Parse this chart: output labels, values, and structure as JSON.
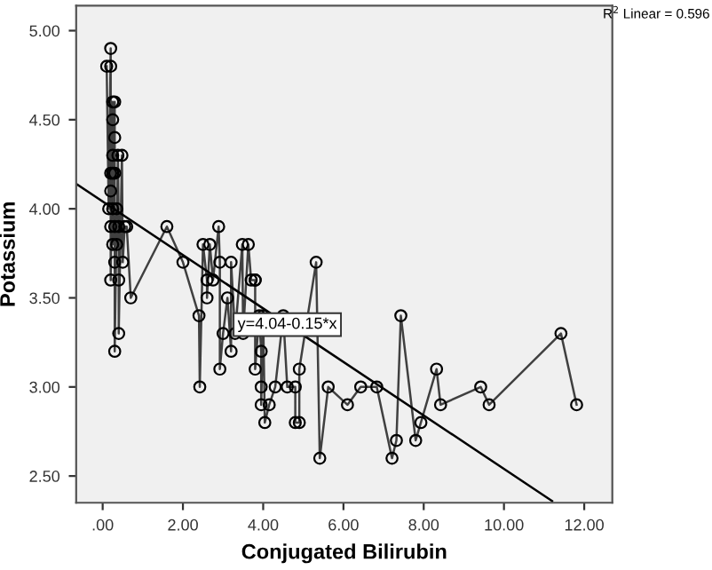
{
  "chart_data": {
    "type": "line",
    "xlabel": "Conjugated Bilirubin",
    "ylabel": "Potassium",
    "xlim": [
      -0.66,
      12.7
    ],
    "ylim": [
      2.35,
      5.14
    ],
    "xticks": [
      {
        "value": 0,
        "label": ".00"
      },
      {
        "value": 2,
        "label": "2.00"
      },
      {
        "value": 4,
        "label": "4.00"
      },
      {
        "value": 6,
        "label": "6.00"
      },
      {
        "value": 8,
        "label": "8.00"
      },
      {
        "value": 10,
        "label": "10.00"
      },
      {
        "value": 12,
        "label": "12.00"
      }
    ],
    "yticks": [
      {
        "value": 2.5,
        "label": "2.50"
      },
      {
        "value": 3,
        "label": "3.00"
      },
      {
        "value": 3.5,
        "label": "3.50"
      },
      {
        "value": 4,
        "label": "4.00"
      },
      {
        "value": 4.5,
        "label": "4.50"
      },
      {
        "value": 5,
        "label": "5.00"
      }
    ],
    "grid": false,
    "legend": false,
    "marker": "circle",
    "line_style": "solid",
    "series": [
      {
        "color": "#404040",
        "x": [
          0.1,
          0.15,
          0.2,
          0.2,
          0.2,
          0.2,
          0.2,
          0.2,
          0.25,
          0.25,
          0.25,
          0.25,
          0.25,
          0.25,
          0.3,
          0.3,
          0.3,
          0.3,
          0.3,
          0.3,
          0.35,
          0.35,
          0.38,
          0.4,
          0.4,
          0.4,
          0.48,
          0.5,
          0.55,
          0.6,
          0.7,
          1.6,
          2.0,
          2.4,
          2.42,
          2.5,
          2.6,
          2.6,
          2.67,
          2.75,
          2.89,
          2.92,
          2.92,
          3.0,
          3.11,
          3.2,
          3.2,
          3.3,
          3.48,
          3.5,
          3.63,
          3.7,
          3.8,
          3.8,
          3.8,
          3.9,
          3.95,
          3.95,
          3.95,
          4.0,
          4.04,
          4.15,
          4.3,
          4.5,
          4.6,
          4.8,
          4.8,
          4.9,
          4.9,
          5.32,
          5.41,
          5.62,
          6.1,
          6.43,
          6.83,
          7.21,
          7.32,
          7.43,
          7.8,
          7.93,
          8.32,
          8.42,
          9.42,
          9.63,
          11.42,
          11.81
        ],
        "values": [
          4.8,
          4.0,
          4.9,
          4.8,
          4.2,
          4.1,
          3.9,
          3.6,
          4.6,
          4.5,
          4.3,
          4.2,
          4.0,
          3.8,
          4.6,
          4.4,
          4.2,
          3.9,
          3.7,
          3.2,
          4.0,
          3.8,
          4.3,
          3.9,
          3.6,
          3.3,
          4.3,
          3.7,
          3.9,
          3.9,
          3.5,
          3.9,
          3.7,
          3.4,
          3.0,
          3.8,
          3.6,
          3.5,
          3.8,
          3.6,
          3.9,
          3.7,
          3.1,
          3.3,
          3.5,
          3.2,
          3.7,
          3.3,
          3.8,
          3.3,
          3.8,
          3.6,
          3.6,
          3.6,
          3.1,
          3.4,
          3.2,
          3.0,
          2.9,
          3.4,
          2.8,
          2.9,
          3.0,
          3.4,
          3.0,
          3.0,
          2.8,
          2.8,
          3.1,
          3.7,
          2.6,
          3.0,
          2.9,
          3.0,
          3.0,
          2.6,
          2.7,
          3.4,
          2.7,
          2.8,
          3.1,
          2.9,
          3.0,
          2.9,
          3.3,
          2.9
        ]
      },
      {
        "color": "#000000",
        "marker": "none",
        "x": [
          -0.66,
          11.2
        ],
        "values": [
          4.14,
          2.36
        ]
      }
    ],
    "annotations": [
      {
        "text": "y=4.04-0.15*x",
        "x": 4.6,
        "y": 3.35
      },
      "R$^{2}$ Linear = 0.596"
    ]
  }
}
